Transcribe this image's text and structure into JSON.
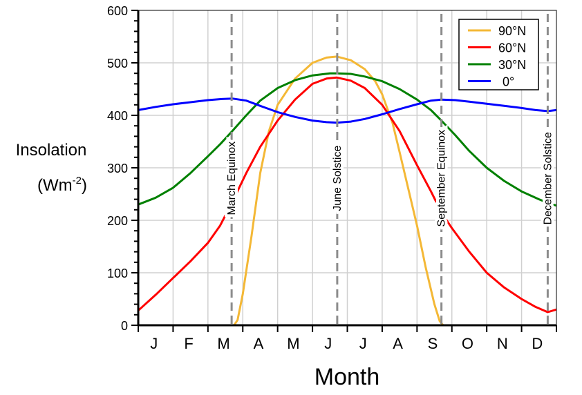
{
  "chart_data": {
    "type": "line",
    "title": "",
    "xlabel": "Month",
    "ylabel": "Insolation",
    "ylabel_units": "(Wm",
    "ylabel_units_exp": "-2",
    "ylabel_units_close": ")",
    "xlim": [
      0,
      12
    ],
    "ylim": [
      0,
      600
    ],
    "yticks": [
      0,
      100,
      200,
      300,
      400,
      500,
      600
    ],
    "month_labels": [
      "J",
      "F",
      "M",
      "A",
      "M",
      "J",
      "J",
      "A",
      "S",
      "O",
      "N",
      "D"
    ],
    "grid": true,
    "legend_position": "top-right",
    "markers": [
      {
        "label": "March Equinox",
        "x": 2.68
      },
      {
        "label": "June Solstice",
        "x": 5.71
      },
      {
        "label": "September Equinox",
        "x": 8.7
      },
      {
        "label": "December Solstice",
        "x": 11.75
      }
    ],
    "series": [
      {
        "name": "90°N",
        "color": "#f4b836",
        "points": [
          [
            2.75,
            0
          ],
          [
            2.85,
            10
          ],
          [
            3,
            60
          ],
          [
            3.25,
            170
          ],
          [
            3.5,
            290
          ],
          [
            3.75,
            370
          ],
          [
            4,
            420
          ],
          [
            4.5,
            470
          ],
          [
            5,
            500
          ],
          [
            5.4,
            510
          ],
          [
            5.7,
            512
          ],
          [
            6.1,
            505
          ],
          [
            6.5,
            488
          ],
          [
            6.8,
            465
          ],
          [
            7,
            440
          ],
          [
            7.3,
            385
          ],
          [
            7.5,
            330
          ],
          [
            7.75,
            260
          ],
          [
            8,
            190
          ],
          [
            8.25,
            110
          ],
          [
            8.5,
            40
          ],
          [
            8.65,
            8
          ],
          [
            8.75,
            0
          ]
        ]
      },
      {
        "name": "60°N",
        "color": "#ff0000",
        "points": [
          [
            0,
            28
          ],
          [
            0.5,
            58
          ],
          [
            1,
            90
          ],
          [
            1.5,
            122
          ],
          [
            2,
            157
          ],
          [
            2.35,
            190
          ],
          [
            2.7,
            235
          ],
          [
            3.1,
            290
          ],
          [
            3.5,
            340
          ],
          [
            4,
            390
          ],
          [
            4.5,
            430
          ],
          [
            5,
            460
          ],
          [
            5.4,
            470
          ],
          [
            5.7,
            472
          ],
          [
            6.1,
            466
          ],
          [
            6.5,
            452
          ],
          [
            7,
            420
          ],
          [
            7.5,
            370
          ],
          [
            8,
            305
          ],
          [
            8.4,
            255
          ],
          [
            8.7,
            215
          ],
          [
            9,
            185
          ],
          [
            9.5,
            140
          ],
          [
            10,
            100
          ],
          [
            10.5,
            72
          ],
          [
            11,
            50
          ],
          [
            11.4,
            35
          ],
          [
            11.75,
            25
          ],
          [
            12,
            30
          ]
        ]
      },
      {
        "name": "30°N",
        "color": "#008000",
        "points": [
          [
            0,
            230
          ],
          [
            0.5,
            243
          ],
          [
            1,
            262
          ],
          [
            1.5,
            290
          ],
          [
            2,
            322
          ],
          [
            2.35,
            345
          ],
          [
            2.7,
            370
          ],
          [
            3.1,
            400
          ],
          [
            3.5,
            428
          ],
          [
            4,
            452
          ],
          [
            4.5,
            467
          ],
          [
            5,
            476
          ],
          [
            5.5,
            480
          ],
          [
            5.7,
            480
          ],
          [
            6.1,
            479
          ],
          [
            6.5,
            474
          ],
          [
            7,
            465
          ],
          [
            7.5,
            450
          ],
          [
            8,
            430
          ],
          [
            8.4,
            410
          ],
          [
            8.7,
            390
          ],
          [
            9.1,
            362
          ],
          [
            9.5,
            332
          ],
          [
            10,
            300
          ],
          [
            10.5,
            275
          ],
          [
            11,
            255
          ],
          [
            11.5,
            240
          ],
          [
            11.8,
            232
          ],
          [
            12,
            228
          ]
        ]
      },
      {
        "name": "0°",
        "color": "#0000ff",
        "points": [
          [
            0,
            410
          ],
          [
            0.5,
            416
          ],
          [
            1,
            421
          ],
          [
            1.5,
            425
          ],
          [
            2,
            429
          ],
          [
            2.4,
            431
          ],
          [
            2.7,
            432
          ],
          [
            3.1,
            428
          ],
          [
            3.5,
            418
          ],
          [
            4,
            406
          ],
          [
            4.5,
            397
          ],
          [
            5,
            390
          ],
          [
            5.4,
            387
          ],
          [
            5.7,
            386
          ],
          [
            6.1,
            388
          ],
          [
            6.5,
            393
          ],
          [
            7,
            402
          ],
          [
            7.5,
            412
          ],
          [
            8,
            421
          ],
          [
            8.4,
            428
          ],
          [
            8.7,
            430
          ],
          [
            9.1,
            429
          ],
          [
            9.5,
            426
          ],
          [
            10,
            422
          ],
          [
            10.5,
            418
          ],
          [
            11,
            414
          ],
          [
            11.4,
            410
          ],
          [
            11.75,
            408
          ],
          [
            12,
            410
          ]
        ]
      }
    ]
  }
}
